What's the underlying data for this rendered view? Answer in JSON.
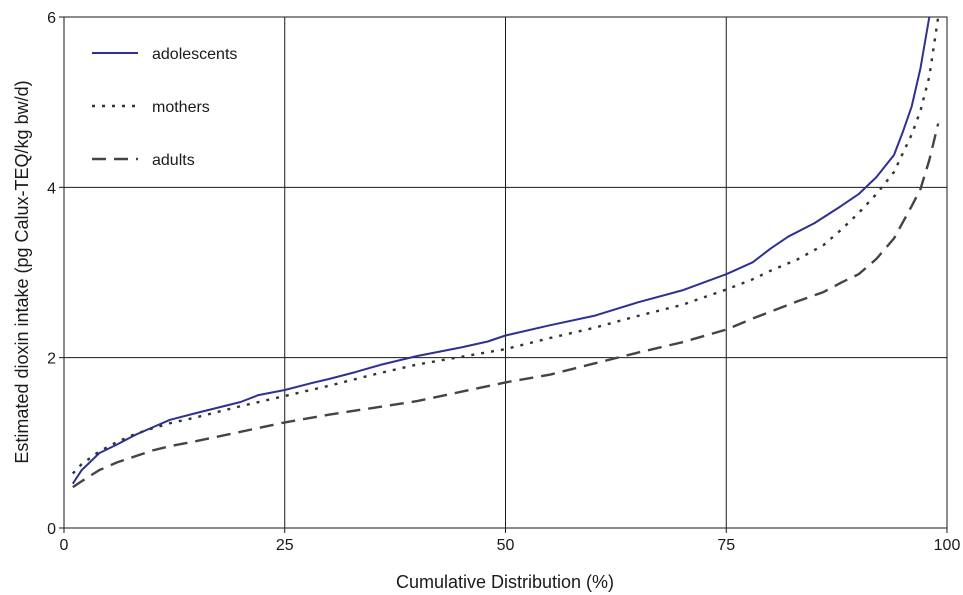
{
  "chart_data": {
    "type": "line",
    "title": "",
    "xlabel": "Cumulative Distribution (%)",
    "ylabel": "Estimated dioxin intake (pg Calux-TEQ/kg bw/d)",
    "xlim": [
      0,
      100
    ],
    "ylim": [
      0,
      6
    ],
    "xticks": [
      0,
      25,
      50,
      75,
      100
    ],
    "yticks": [
      0,
      2,
      4,
      6
    ],
    "grid": true,
    "legend_position": "top-left",
    "series": [
      {
        "name": "adolescents",
        "style": "solid",
        "color": "#2e3192",
        "x": [
          1,
          2,
          4,
          6,
          8,
          10,
          12,
          15,
          20,
          22,
          25,
          28,
          30,
          33,
          36,
          40,
          45,
          48,
          50,
          55,
          60,
          65,
          70,
          75,
          78,
          80,
          82,
          85,
          88,
          90,
          92,
          94,
          95,
          96,
          97,
          98
        ],
        "y": [
          0.52,
          0.68,
          0.88,
          0.98,
          1.09,
          1.18,
          1.27,
          1.35,
          1.48,
          1.56,
          1.62,
          1.7,
          1.75,
          1.83,
          1.92,
          2.02,
          2.12,
          2.19,
          2.26,
          2.38,
          2.49,
          2.65,
          2.79,
          2.98,
          3.12,
          3.28,
          3.42,
          3.58,
          3.78,
          3.92,
          4.12,
          4.38,
          4.65,
          4.95,
          5.4,
          6.0
        ]
      },
      {
        "name": "mothers",
        "style": "dotted",
        "color": "#333333",
        "x": [
          1,
          2,
          4,
          6,
          8,
          10,
          12,
          15,
          20,
          25,
          30,
          35,
          40,
          45,
          50,
          55,
          60,
          65,
          70,
          75,
          78,
          80,
          83,
          86,
          88,
          90,
          92,
          94,
          95,
          96,
          97,
          98,
          99
        ],
        "y": [
          0.64,
          0.75,
          0.9,
          1.01,
          1.1,
          1.17,
          1.23,
          1.3,
          1.43,
          1.55,
          1.67,
          1.8,
          1.92,
          2.01,
          2.1,
          2.23,
          2.35,
          2.49,
          2.62,
          2.8,
          2.92,
          3.02,
          3.15,
          3.32,
          3.5,
          3.7,
          3.92,
          4.18,
          4.4,
          4.62,
          4.9,
          5.3,
          6.0
        ]
      },
      {
        "name": "adults",
        "style": "dashed",
        "color": "#444444",
        "x": [
          1,
          2,
          4,
          6,
          8,
          10,
          12,
          15,
          20,
          25,
          30,
          35,
          40,
          45,
          50,
          55,
          60,
          65,
          70,
          75,
          78,
          80,
          83,
          86,
          88,
          90,
          92,
          94,
          96,
          97,
          98,
          99
        ],
        "y": [
          0.48,
          0.55,
          0.68,
          0.77,
          0.84,
          0.91,
          0.96,
          1.02,
          1.13,
          1.24,
          1.33,
          1.41,
          1.49,
          1.6,
          1.71,
          1.8,
          1.93,
          2.06,
          2.18,
          2.33,
          2.46,
          2.54,
          2.66,
          2.77,
          2.88,
          2.98,
          3.16,
          3.4,
          3.78,
          3.98,
          4.32,
          4.75
        ]
      }
    ]
  }
}
